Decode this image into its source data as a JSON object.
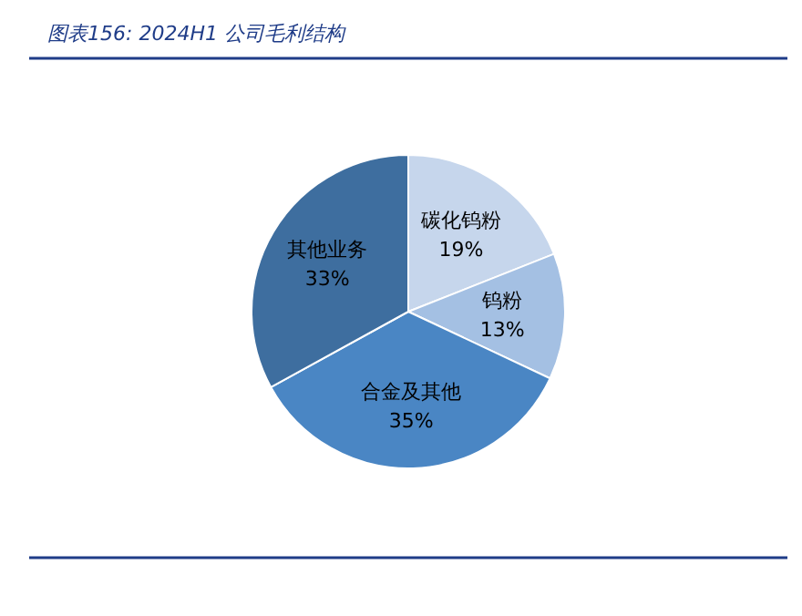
{
  "chart_data": {
    "type": "pie",
    "title": "图表156:  2024H1 公司毛利结构",
    "categories": [
      "碳化钨粉",
      "钨粉",
      "合金及其他",
      "其他业务"
    ],
    "values": [
      19,
      13,
      35,
      33
    ],
    "colors": [
      "#c6d6ec",
      "#a4c0e3",
      "#4a86c4",
      "#3e6e9f"
    ],
    "value_labels": [
      "19%",
      "13%",
      "35%",
      "33%"
    ]
  }
}
